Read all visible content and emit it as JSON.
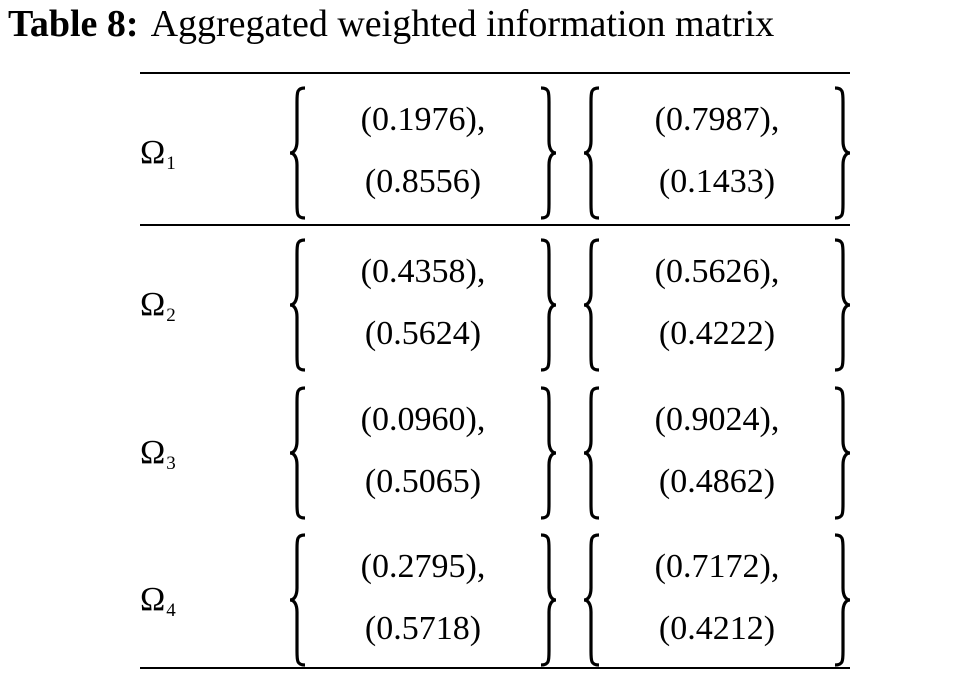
{
  "caption": {
    "label": "Table 8:",
    "text": "Aggregated weighted information matrix"
  },
  "rows": [
    {
      "omega": "Ω",
      "sub": "1",
      "a": [
        "(0.1976),",
        "(0.8556)"
      ],
      "b": [
        "(0.7987),",
        "(0.1433)"
      ]
    },
    {
      "omega": "Ω",
      "sub": "2",
      "a": [
        "(0.4358),",
        "(0.5624)"
      ],
      "b": [
        "(0.5626),",
        "(0.4222)"
      ]
    },
    {
      "omega": "Ω",
      "sub": "3",
      "a": [
        "(0.0960),",
        "(0.5065)"
      ],
      "b": [
        "(0.9024),",
        "(0.4862)"
      ]
    },
    {
      "omega": "Ω",
      "sub": "4",
      "a": [
        "(0.2795),",
        "(0.5718)"
      ],
      "b": [
        "(0.7172),",
        "(0.4212)"
      ]
    }
  ]
}
